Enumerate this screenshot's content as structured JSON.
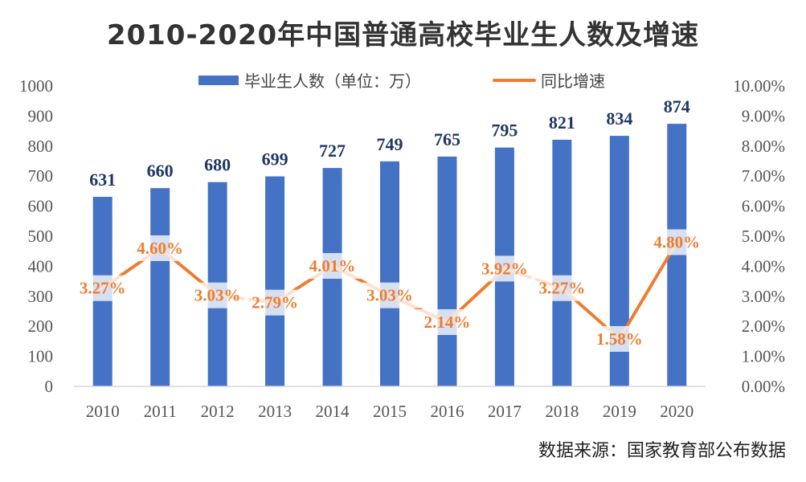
{
  "chart_data": {
    "type": "bar",
    "title": "2010-2020年中国普通高校毕业生人数及增速",
    "source": "数据来源：国家教育部公布数据",
    "categories": [
      "2010",
      "2011",
      "2012",
      "2013",
      "2014",
      "2015",
      "2016",
      "2017",
      "2018",
      "2019",
      "2020"
    ],
    "series": [
      {
        "name": "毕业生人数（单位：万）",
        "kind": "bar",
        "axis": "left",
        "values": [
          631,
          660,
          680,
          699,
          727,
          749,
          765,
          795,
          821,
          834,
          874
        ],
        "labels": [
          "631",
          "660",
          "680",
          "699",
          "727",
          "749",
          "765",
          "795",
          "821",
          "834",
          "874"
        ]
      },
      {
        "name": "同比增速",
        "kind": "line",
        "axis": "right",
        "values": [
          3.27,
          4.6,
          3.03,
          2.79,
          4.01,
          3.03,
          2.14,
          3.92,
          3.27,
          1.58,
          4.8
        ],
        "labels": [
          "3.27%",
          "4.60%",
          "3.03%",
          "2.79%",
          "4.01%",
          "3.03%",
          "2.14%",
          "3.92%",
          "3.27%",
          "1.58%",
          "4.80%"
        ]
      }
    ],
    "y_left": {
      "min": 0,
      "max": 1000,
      "ticks": [
        "0",
        "100",
        "200",
        "300",
        "400",
        "500",
        "600",
        "700",
        "800",
        "900",
        "1000"
      ]
    },
    "y_right": {
      "min": 0,
      "max": 10,
      "ticks": [
        "0.00%",
        "1.00%",
        "2.00%",
        "3.00%",
        "4.00%",
        "5.00%",
        "6.00%",
        "7.00%",
        "8.00%",
        "9.00%",
        "10.00%"
      ]
    },
    "legend_position": "top",
    "grid": false
  },
  "colors": {
    "bar": "#4472c4",
    "line": "#ed7d31",
    "bar_label": "#1f3864",
    "axis": "#d9d9d9"
  }
}
